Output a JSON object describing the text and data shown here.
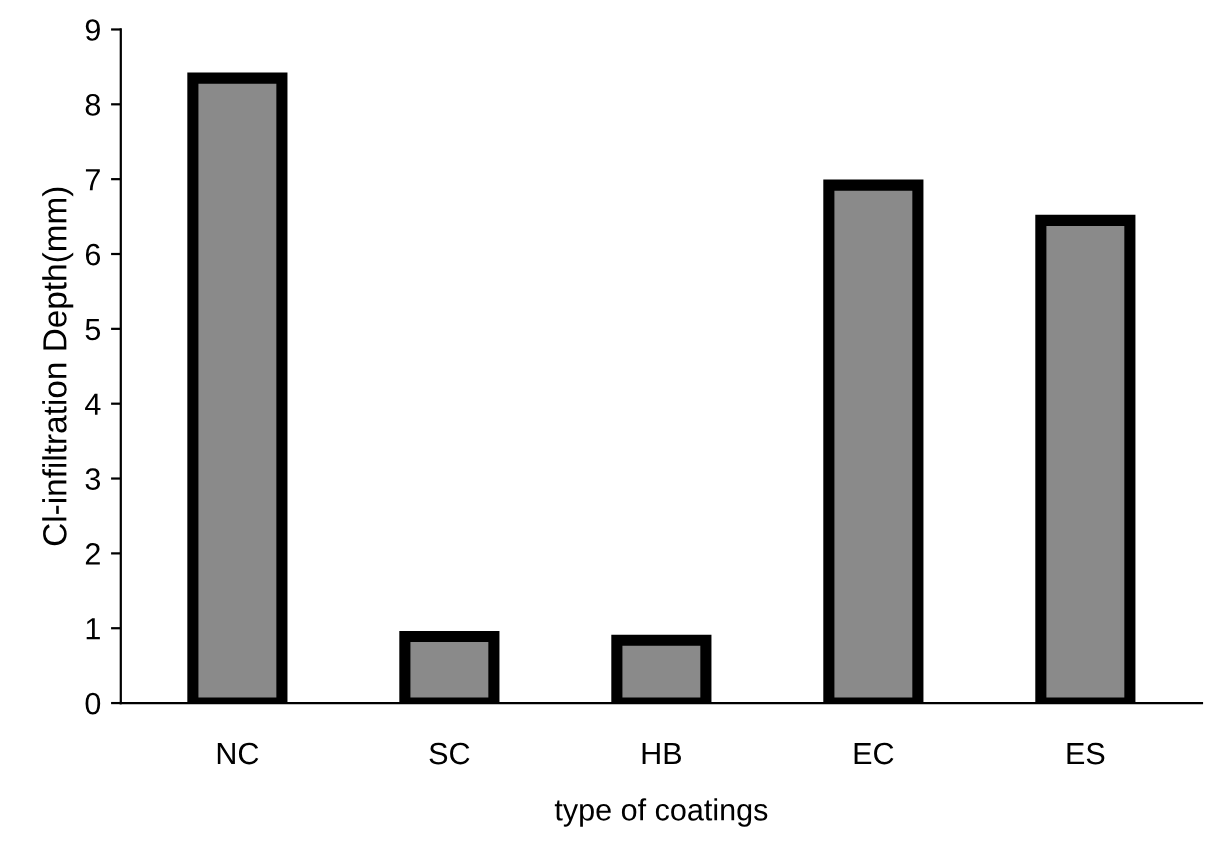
{
  "chart_data": {
    "type": "bar",
    "xlabel": "type of coatings",
    "ylabel": "Cl-infiltration Depth(mm)",
    "categories": [
      "NC",
      "SC",
      "HB",
      "EC",
      "ES"
    ],
    "values": [
      8.35,
      0.89,
      0.84,
      6.92,
      6.45
    ],
    "color": "#8a8a8a",
    "ylim": [
      0,
      9
    ],
    "yticks": [
      0,
      1,
      2,
      3,
      4,
      5,
      6,
      7,
      8,
      9
    ],
    "grid": false
  }
}
